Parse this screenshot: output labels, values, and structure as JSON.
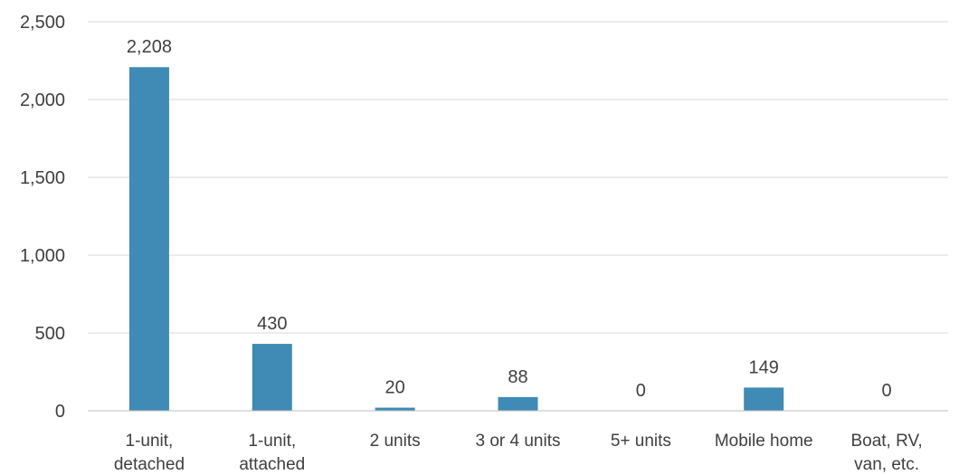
{
  "chart_data": {
    "type": "bar",
    "title": "",
    "xlabel": "",
    "ylabel": "",
    "categories": [
      [
        "1-unit,",
        "detached"
      ],
      [
        "1-unit,",
        "attached"
      ],
      [
        "2 units"
      ],
      [
        "3 or 4 units"
      ],
      [
        "5+ units"
      ],
      [
        "Mobile home"
      ],
      [
        "Boat, RV,",
        "van, etc."
      ]
    ],
    "values": [
      2208,
      430,
      20,
      88,
      0,
      149,
      0
    ],
    "data_labels": [
      "2,208",
      "430",
      "20",
      "88",
      "0",
      "149",
      "0"
    ],
    "ylim": [
      0,
      2500
    ],
    "yticks": [
      0,
      500,
      1000,
      1500,
      2000,
      2500
    ],
    "ytick_labels": [
      "0",
      "500",
      "1,000",
      "1,500",
      "2,000",
      "2,500"
    ],
    "grid": true,
    "legend": "none",
    "colors": {
      "bar": "#3f8bb5",
      "grid": "#d9d9d9",
      "axis": "#bfbfbf",
      "text": "#404040"
    }
  }
}
